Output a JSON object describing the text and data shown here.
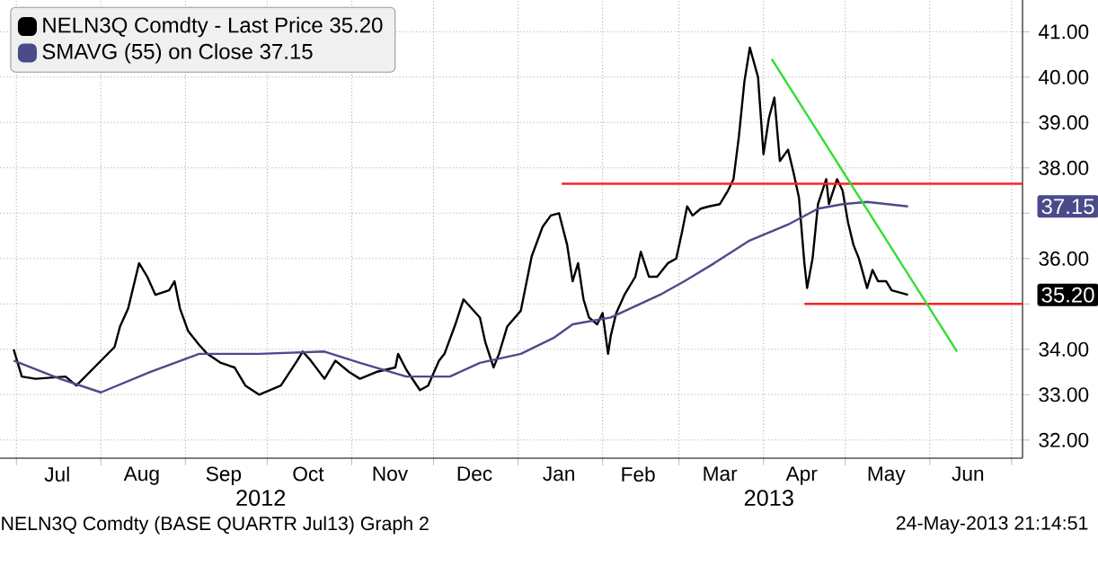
{
  "chart_data": {
    "type": "line",
    "xlim": [
      "2012-06-25",
      "2013-07-05"
    ],
    "ylim": [
      31.6,
      41.7
    ],
    "xticks": [
      {
        "value": "2012-07-01",
        "label": null
      },
      {
        "value": "2012-08-01",
        "label": null
      },
      {
        "value": "2012-09-01",
        "label": null
      },
      {
        "value": "2012-10-01",
        "label": null
      },
      {
        "value": "2012-11-01",
        "label": null
      },
      {
        "value": "2012-12-01",
        "label": null
      },
      {
        "value": "2013-01-01",
        "label": null
      },
      {
        "value": "2013-02-01",
        "label": null
      },
      {
        "value": "2013-03-01",
        "label": null
      },
      {
        "value": "2013-04-01",
        "label": null
      },
      {
        "value": "2013-05-01",
        "label": null
      },
      {
        "value": "2013-06-01",
        "label": null
      },
      {
        "value": "2013-07-01",
        "label": null
      },
      {
        "value": "2012-07-16",
        "label": "Jul"
      },
      {
        "value": "2012-08-16",
        "label": "Aug"
      },
      {
        "value": "2012-09-15",
        "label": "Sep"
      },
      {
        "value": "2012-10-16",
        "label": "Oct"
      },
      {
        "value": "2012-11-15",
        "label": "Nov"
      },
      {
        "value": "2012-12-16",
        "label": "Dec"
      },
      {
        "value": "2013-01-16",
        "label": "Jan"
      },
      {
        "value": "2013-02-14",
        "label": "Feb"
      },
      {
        "value": "2013-03-16",
        "label": "Mar"
      },
      {
        "value": "2013-04-15",
        "label": "Apr"
      },
      {
        "value": "2013-05-16",
        "label": "May"
      },
      {
        "value": "2013-06-15",
        "label": "Jun"
      }
    ],
    "yticks": [
      {
        "value": 32,
        "label": "32.00"
      },
      {
        "value": 33,
        "label": "33.00"
      },
      {
        "value": 34,
        "label": "34.00"
      },
      {
        "value": 35,
        "label": null
      },
      {
        "value": 36,
        "label": "36.00"
      },
      {
        "value": 37,
        "label": null
      },
      {
        "value": 38,
        "label": "38.00"
      },
      {
        "value": 39,
        "label": "39.00"
      },
      {
        "value": 40,
        "label": "40.00"
      },
      {
        "value": 41,
        "label": "41.00"
      }
    ],
    "grid": true,
    "legend": "top left",
    "series": [
      {
        "name": "NELN3Q Comdty - Last Price 35.20",
        "color": "#000000",
        "x": [
          "2012-06-30",
          "2012-07-03",
          "2012-07-08",
          "2012-07-19",
          "2012-07-23",
          "2012-08-06",
          "2012-08-08",
          "2012-08-11",
          "2012-08-15",
          "2012-08-18",
          "2012-08-21",
          "2012-08-26",
          "2012-08-28",
          "2012-08-30",
          "2012-09-02",
          "2012-09-06",
          "2012-09-09",
          "2012-09-14",
          "2012-09-19",
          "2012-09-23",
          "2012-09-28",
          "2012-10-02",
          "2012-10-06",
          "2012-10-12",
          "2012-10-14",
          "2012-10-17",
          "2012-10-22",
          "2012-10-26",
          "2012-10-31",
          "2012-11-04",
          "2012-11-10",
          "2012-11-17",
          "2012-11-18",
          "2012-11-21",
          "2012-11-26",
          "2012-11-29",
          "2012-12-03",
          "2012-12-05",
          "2012-12-09",
          "2012-12-12",
          "2012-12-18",
          "2012-12-20",
          "2012-12-23",
          "2012-12-25",
          "2012-12-28",
          "2013-01-02",
          "2013-01-06",
          "2013-01-10",
          "2013-01-13",
          "2013-01-16",
          "2013-01-19",
          "2013-01-21",
          "2013-01-23",
          "2013-01-25",
          "2013-01-27",
          "2013-01-30",
          "2013-02-01",
          "2013-02-03",
          "2013-02-04",
          "2013-02-06",
          "2013-02-09",
          "2013-02-13",
          "2013-02-15",
          "2013-02-18",
          "2013-02-21",
          "2013-02-25",
          "2013-02-28",
          "2013-03-02",
          "2013-03-04",
          "2013-03-06",
          "2013-03-09",
          "2013-03-12",
          "2013-03-16",
          "2013-03-19",
          "2013-03-21",
          "2013-03-23",
          "2013-03-25",
          "2013-03-27",
          "2013-03-30",
          "2013-04-01",
          "2013-04-03",
          "2013-04-05",
          "2013-04-07",
          "2013-04-10",
          "2013-04-12",
          "2013-04-14",
          "2013-04-16",
          "2013-04-17",
          "2013-04-19",
          "2013-04-21",
          "2013-04-24",
          "2013-04-25",
          "2013-04-28",
          "2013-04-30",
          "2013-05-02",
          "2013-05-04",
          "2013-05-06",
          "2013-05-09",
          "2013-05-11",
          "2013-05-13",
          "2013-05-16",
          "2013-05-18",
          "2013-05-21",
          "2013-05-24"
        ],
        "values": [
          34.0,
          33.4,
          33.35,
          33.4,
          33.2,
          34.05,
          34.5,
          34.9,
          35.9,
          35.6,
          35.2,
          35.3,
          35.5,
          34.9,
          34.4,
          34.1,
          33.9,
          33.7,
          33.6,
          33.2,
          33.0,
          33.1,
          33.2,
          33.75,
          33.95,
          33.75,
          33.35,
          33.75,
          33.5,
          33.35,
          33.5,
          33.6,
          33.9,
          33.55,
          33.1,
          33.2,
          33.75,
          33.9,
          34.55,
          35.1,
          34.7,
          34.15,
          33.6,
          33.9,
          34.5,
          34.85,
          36.05,
          36.7,
          36.95,
          37.0,
          36.3,
          35.5,
          35.9,
          35.1,
          34.7,
          34.55,
          34.8,
          33.9,
          34.3,
          34.8,
          35.2,
          35.6,
          36.15,
          35.6,
          35.6,
          35.9,
          36.0,
          36.55,
          37.15,
          36.95,
          37.1,
          37.15,
          37.2,
          37.5,
          37.75,
          38.7,
          39.9,
          40.65,
          40.0,
          38.3,
          39.1,
          39.55,
          38.15,
          38.4,
          37.9,
          37.35,
          35.9,
          35.35,
          36.0,
          37.2,
          37.75,
          37.2,
          37.75,
          37.5,
          36.8,
          36.3,
          36.0,
          35.35,
          35.75,
          35.5,
          35.5,
          35.3,
          35.25,
          35.2
        ]
      },
      {
        "name": "SMAVG (55) on Close 37.15",
        "color": "#4b4a8a",
        "x": [
          "2012-06-30",
          "2012-07-17",
          "2012-08-01",
          "2012-08-19",
          "2012-09-06",
          "2012-09-28",
          "2012-10-22",
          "2012-11-04",
          "2012-11-21",
          "2012-12-07",
          "2012-12-18",
          "2013-01-02",
          "2013-01-14",
          "2013-01-21",
          "2013-02-04",
          "2013-02-22",
          "2013-03-03",
          "2013-03-14",
          "2013-03-27",
          "2013-04-10",
          "2013-04-21",
          "2013-04-30",
          "2013-05-09",
          "2013-05-24"
        ],
        "values": [
          33.75,
          33.35,
          33.05,
          33.5,
          33.9,
          33.9,
          33.95,
          33.7,
          33.4,
          33.4,
          33.7,
          33.9,
          34.25,
          34.55,
          34.7,
          35.2,
          35.5,
          35.9,
          36.4,
          36.75,
          37.1,
          37.2,
          37.25,
          37.15
        ]
      },
      {
        "type": "line",
        "color": "#ff2020",
        "x": [
          "2013-01-17",
          "2013-07-05"
        ],
        "values": [
          37.65,
          37.65
        ]
      },
      {
        "type": "line",
        "color": "#ff2020",
        "x": [
          "2013-04-16",
          "2013-07-05"
        ],
        "values": [
          35.0,
          35.0
        ]
      },
      {
        "type": "line",
        "color": "#33dd33",
        "x": [
          "2013-04-04",
          "2013-06-11"
        ],
        "values": [
          40.4,
          33.95
        ]
      }
    ],
    "annotations": [
      "2012",
      "2013",
      "NELN3Q Comdty (BASE QUARTR Jul13) Graph 2",
      "24-May-2013 21:14:51",
      "37.15",
      "35.20"
    ]
  }
}
